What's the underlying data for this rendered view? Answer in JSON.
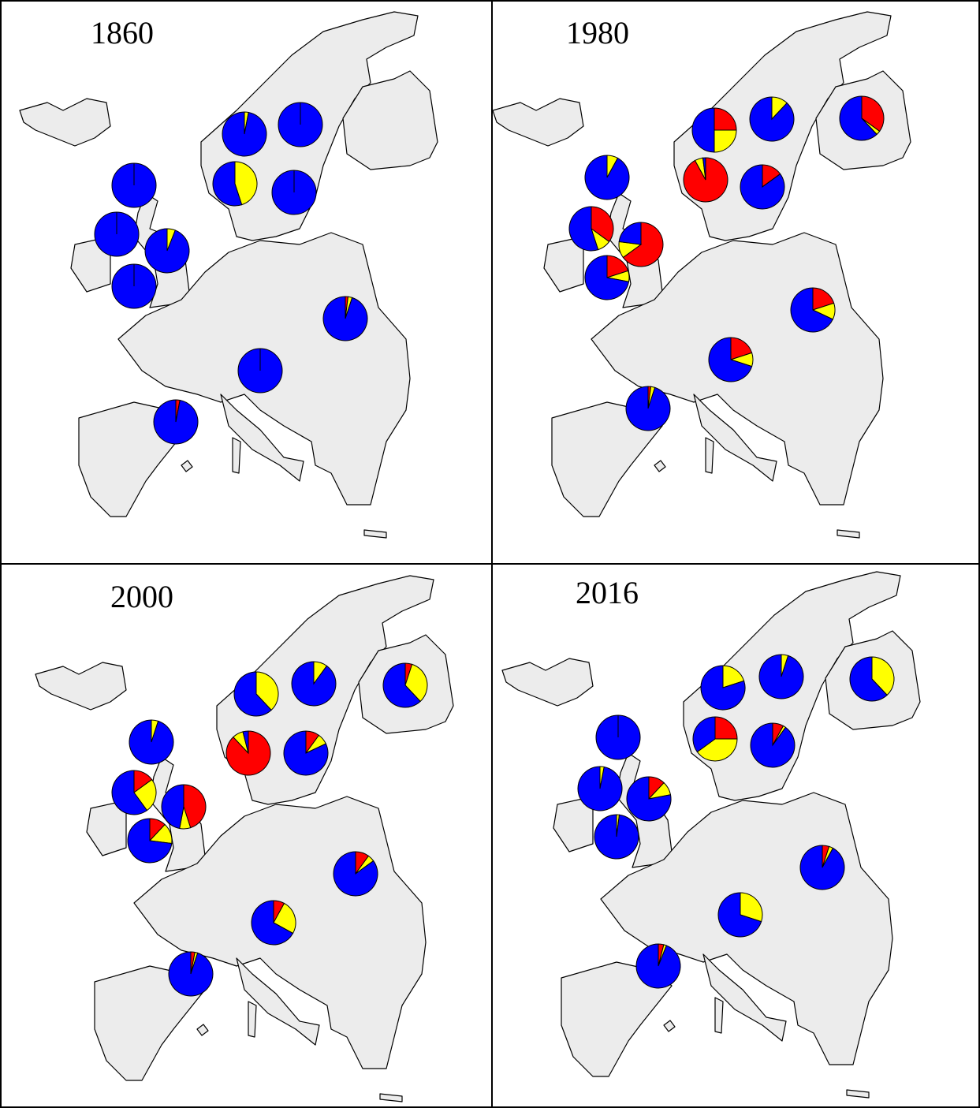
{
  "chart_data": [
    {
      "type": "pie",
      "title": "1860",
      "colors": [
        "#ff0000",
        "#ffff00",
        "#0000ff"
      ],
      "pies": [
        {
          "values": [
            0,
            3,
            97
          ]
        },
        {
          "values": [
            0,
            0,
            100
          ]
        },
        {
          "values": [
            0,
            0,
            100
          ]
        },
        {
          "values": [
            0,
            45,
            55
          ]
        },
        {
          "values": [
            0,
            0,
            100
          ]
        },
        {
          "values": [
            0,
            0,
            100
          ]
        },
        {
          "values": [
            0,
            6,
            94
          ]
        },
        {
          "values": [
            0,
            0,
            100
          ]
        },
        {
          "values": [
            2,
            3,
            95
          ]
        },
        {
          "values": [
            0,
            0,
            100
          ]
        },
        {
          "values": [
            3,
            0,
            97
          ]
        }
      ]
    },
    {
      "type": "pie",
      "title": "1980",
      "colors": [
        "#ff0000",
        "#ffff00",
        "#0000ff"
      ],
      "pies": [
        {
          "values": [
            25,
            25,
            50
          ]
        },
        {
          "values": [
            0,
            12,
            88
          ]
        },
        {
          "values": [
            35,
            3,
            62
          ]
        },
        {
          "values": [
            0,
            8,
            92
          ]
        },
        {
          "values": [
            92,
            6,
            2
          ]
        },
        {
          "values": [
            15,
            0,
            85
          ]
        },
        {
          "values": [
            35,
            10,
            55
          ]
        },
        {
          "values": [
            65,
            12,
            23
          ]
        },
        {
          "values": [
            20,
            8,
            72
          ]
        },
        {
          "values": [
            20,
            12,
            68
          ]
        },
        {
          "values": [
            20,
            10,
            70
          ]
        },
        {
          "values": [
            2,
            3,
            95
          ]
        }
      ]
    },
    {
      "type": "pie",
      "title": "2000",
      "colors": [
        "#ff0000",
        "#ffff00",
        "#0000ff"
      ],
      "pies": [
        {
          "values": [
            0,
            38,
            62
          ]
        },
        {
          "values": [
            0,
            10,
            90
          ]
        },
        {
          "values": [
            5,
            33,
            62
          ]
        },
        {
          "values": [
            0,
            5,
            95
          ]
        },
        {
          "values": [
            88,
            8,
            4
          ]
        },
        {
          "values": [
            10,
            8,
            82
          ]
        },
        {
          "values": [
            15,
            25,
            60
          ]
        },
        {
          "values": [
            45,
            8,
            47
          ]
        },
        {
          "values": [
            12,
            15,
            73
          ]
        },
        {
          "values": [
            10,
            5,
            85
          ]
        },
        {
          "values": [
            8,
            25,
            67
          ]
        },
        {
          "values": [
            3,
            2,
            95
          ]
        }
      ]
    },
    {
      "type": "pie",
      "title": "2016",
      "colors": [
        "#ff0000",
        "#ffff00",
        "#0000ff"
      ],
      "pies": [
        {
          "values": [
            0,
            20,
            80
          ]
        },
        {
          "values": [
            0,
            5,
            95
          ]
        },
        {
          "values": [
            0,
            38,
            62
          ]
        },
        {
          "values": [
            0,
            0,
            100
          ]
        },
        {
          "values": [
            25,
            40,
            35
          ]
        },
        {
          "values": [
            8,
            2,
            90
          ]
        },
        {
          "values": [
            0,
            3,
            97
          ]
        },
        {
          "values": [
            12,
            10,
            78
          ]
        },
        {
          "values": [
            0,
            2,
            98
          ]
        },
        {
          "values": [
            5,
            3,
            92
          ]
        },
        {
          "values": [
            0,
            30,
            70
          ]
        },
        {
          "values": [
            4,
            2,
            94
          ]
        }
      ]
    }
  ]
}
